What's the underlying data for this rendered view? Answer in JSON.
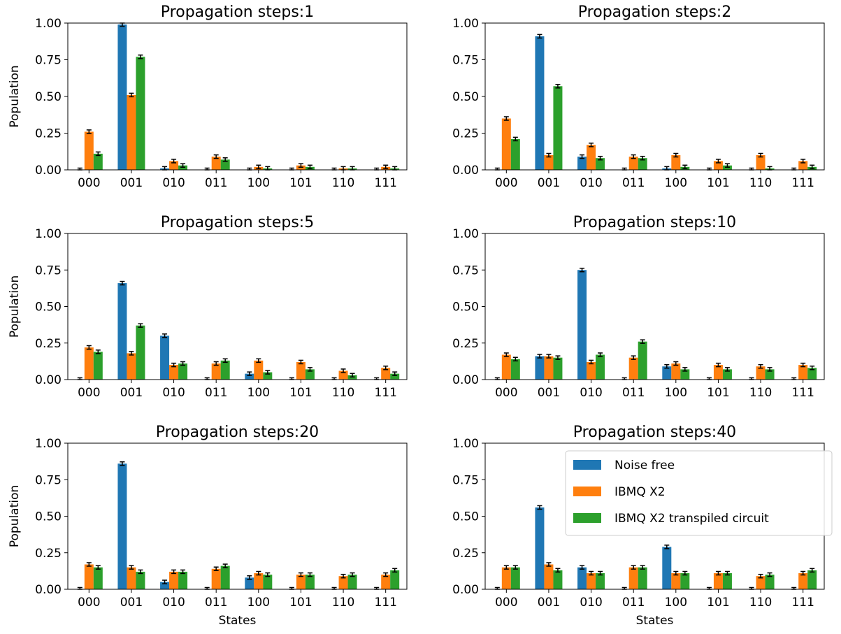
{
  "chart_data": {
    "type": "bar",
    "legend_position": "upper-right (in last panel)",
    "colors": {
      "Noise free": "#1f77b4",
      "IBMQ X2": "#ff7f0e",
      "IBMQ X2 transpiled circuit": "#2ca02c",
      "errorbar": "#000000"
    },
    "legend": [
      "Noise free",
      "IBMQ X2",
      "IBMQ X2 transpiled circuit"
    ],
    "categories": [
      "000",
      "001",
      "010",
      "011",
      "100",
      "101",
      "110",
      "111"
    ],
    "yticks": [
      "0.00",
      "0.25",
      "0.50",
      "0.75",
      "1.00"
    ],
    "ylim": [
      0,
      1
    ],
    "ylabel": "Population",
    "xlabel": "States",
    "panels": [
      {
        "title": "Propagation steps:1",
        "series": [
          {
            "name": "Noise free",
            "values": [
              0.0,
              0.99,
              0.01,
              0.0,
              0.0,
              0.0,
              0.0,
              0.0
            ]
          },
          {
            "name": "IBMQ X2",
            "values": [
              0.26,
              0.51,
              0.06,
              0.09,
              0.02,
              0.03,
              0.01,
              0.02
            ]
          },
          {
            "name": "IBMQ X2 transpiled circuit",
            "values": [
              0.11,
              0.77,
              0.03,
              0.07,
              0.01,
              0.02,
              0.01,
              0.01
            ]
          }
        ]
      },
      {
        "title": "Propagation steps:2",
        "series": [
          {
            "name": "Noise free",
            "values": [
              0.0,
              0.91,
              0.09,
              0.0,
              0.01,
              0.0,
              0.0,
              0.0
            ]
          },
          {
            "name": "IBMQ X2",
            "values": [
              0.35,
              0.1,
              0.17,
              0.09,
              0.1,
              0.06,
              0.1,
              0.06
            ]
          },
          {
            "name": "IBMQ X2 transpiled circuit",
            "values": [
              0.21,
              0.57,
              0.08,
              0.08,
              0.02,
              0.03,
              0.01,
              0.02
            ]
          }
        ]
      },
      {
        "title": "Propagation steps:5",
        "series": [
          {
            "name": "Noise free",
            "values": [
              0.0,
              0.66,
              0.3,
              0.0,
              0.04,
              0.0,
              0.0,
              0.0
            ]
          },
          {
            "name": "IBMQ X2",
            "values": [
              0.22,
              0.18,
              0.1,
              0.11,
              0.13,
              0.12,
              0.06,
              0.08
            ]
          },
          {
            "name": "IBMQ X2 transpiled circuit",
            "values": [
              0.19,
              0.37,
              0.11,
              0.13,
              0.05,
              0.07,
              0.03,
              0.04
            ]
          }
        ]
      },
      {
        "title": "Propagation steps:10",
        "series": [
          {
            "name": "Noise free",
            "values": [
              0.0,
              0.16,
              0.75,
              0.0,
              0.09,
              0.0,
              0.0,
              0.0
            ]
          },
          {
            "name": "IBMQ X2",
            "values": [
              0.17,
              0.16,
              0.12,
              0.15,
              0.11,
              0.1,
              0.09,
              0.1
            ]
          },
          {
            "name": "IBMQ X2 transpiled circuit",
            "values": [
              0.14,
              0.15,
              0.17,
              0.26,
              0.07,
              0.07,
              0.07,
              0.08
            ]
          }
        ]
      },
      {
        "title": "Propagation steps:20",
        "series": [
          {
            "name": "Noise free",
            "values": [
              0.0,
              0.86,
              0.05,
              0.0,
              0.08,
              0.0,
              0.0,
              0.0
            ]
          },
          {
            "name": "IBMQ X2",
            "values": [
              0.17,
              0.15,
              0.12,
              0.14,
              0.11,
              0.1,
              0.09,
              0.1
            ]
          },
          {
            "name": "IBMQ X2 transpiled circuit",
            "values": [
              0.15,
              0.12,
              0.12,
              0.16,
              0.1,
              0.1,
              0.1,
              0.13
            ]
          }
        ]
      },
      {
        "title": "Propagation steps:40",
        "series": [
          {
            "name": "Noise free",
            "values": [
              0.0,
              0.56,
              0.15,
              0.0,
              0.29,
              0.0,
              0.0,
              0.0
            ]
          },
          {
            "name": "IBMQ X2",
            "values": [
              0.15,
              0.17,
              0.11,
              0.15,
              0.11,
              0.11,
              0.09,
              0.11
            ]
          },
          {
            "name": "IBMQ X2 transpiled circuit",
            "values": [
              0.15,
              0.13,
              0.11,
              0.15,
              0.11,
              0.11,
              0.1,
              0.13
            ]
          }
        ]
      }
    ]
  }
}
